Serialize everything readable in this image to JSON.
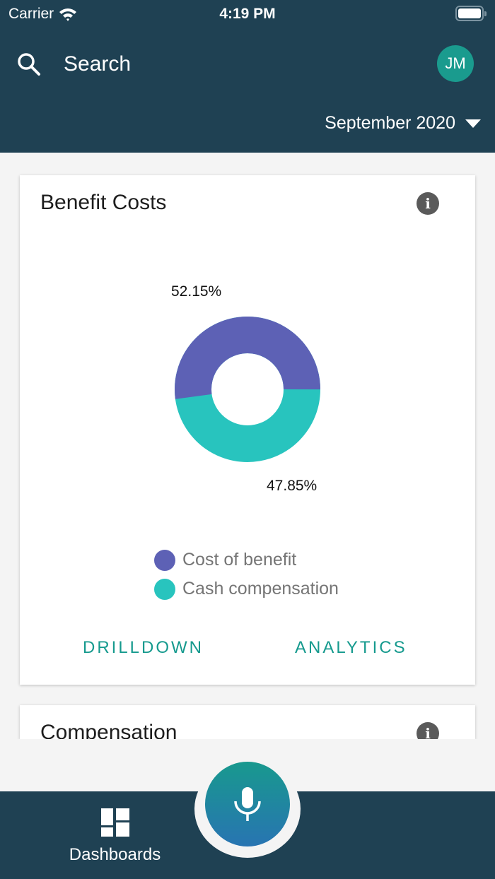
{
  "status_bar": {
    "carrier": "Carrier",
    "time": "4:19 PM"
  },
  "header": {
    "search_label": "Search",
    "avatar_initials": "JM",
    "period": "September 2020"
  },
  "cards": [
    {
      "title": "Benefit Costs",
      "actions": {
        "drilldown": "DRILLDOWN",
        "analytics": "ANALYTICS"
      }
    },
    {
      "title": "Compensation"
    }
  ],
  "colors": {
    "header_bg": "#1f4153",
    "accent": "#169a8e",
    "cost_of_benefit": "#5d61b5",
    "cash_compensation": "#28c4be"
  },
  "chart_data": {
    "type": "pie",
    "subtype": "donut",
    "title": "Benefit Costs",
    "categories": [
      "Cost of benefit",
      "Cash compensation"
    ],
    "values": [
      52.15,
      47.85
    ],
    "labels": [
      "52.15%",
      "47.85%"
    ],
    "colors": [
      "#5d61b5",
      "#28c4be"
    ],
    "legend_position": "bottom"
  },
  "tabbar": {
    "dashboards_label": "Dashboards"
  }
}
